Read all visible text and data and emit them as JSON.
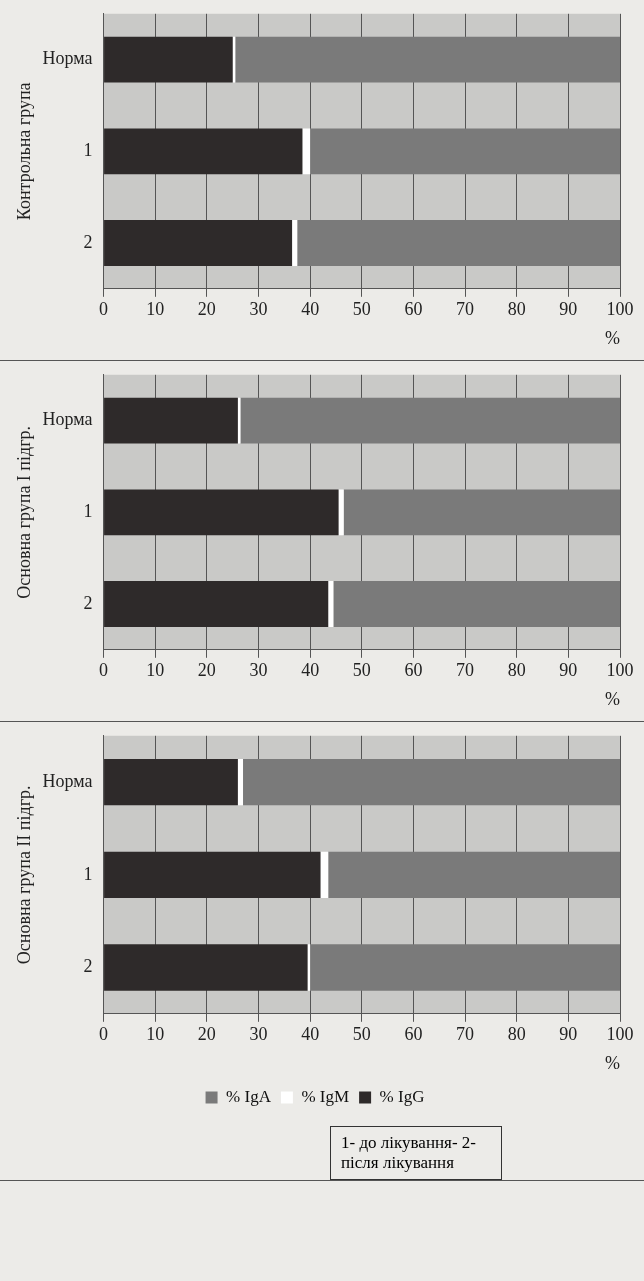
{
  "chart_data": [
    {
      "type": "bar",
      "orientation": "horizontal",
      "stacked": true,
      "ylabel": "Контрольна група",
      "xlabel": "%",
      "categories": [
        "Норма",
        "1",
        "2"
      ],
      "series": [
        {
          "color": "#2e2a2a",
          "values": [
            25,
            38.5,
            36.5
          ]
        },
        {
          "color": "#ffffff",
          "values": [
            0.5,
            1.5,
            1
          ]
        },
        {
          "color": "#7a7a7a",
          "values": [
            74.5,
            60,
            62.5
          ]
        }
      ],
      "xlim": [
        0,
        100
      ],
      "xticks": [
        0,
        10,
        20,
        30,
        40,
        50,
        60,
        70,
        80,
        90,
        100
      ],
      "grid": "x",
      "legend": false
    },
    {
      "type": "bar",
      "orientation": "horizontal",
      "stacked": true,
      "ylabel": "Основна група I підгр.",
      "xlabel": "%",
      "categories": [
        "Норма",
        "1",
        "2"
      ],
      "series": [
        {
          "color": "#2e2a2a",
          "values": [
            26,
            45.5,
            43.5
          ]
        },
        {
          "color": "#ffffff",
          "values": [
            0.5,
            1,
            1
          ]
        },
        {
          "color": "#7a7a7a",
          "values": [
            73.5,
            53.5,
            55.5
          ]
        }
      ],
      "xlim": [
        0,
        100
      ],
      "xticks": [
        0,
        10,
        20,
        30,
        40,
        50,
        60,
        70,
        80,
        90,
        100
      ],
      "grid": "x",
      "legend": false
    },
    {
      "type": "bar",
      "orientation": "horizontal",
      "stacked": true,
      "ylabel": "Основна група II підгр.",
      "xlabel": "%",
      "categories": [
        "Норма",
        "1",
        "2"
      ],
      "series": [
        {
          "name": "% IgG",
          "color": "#2e2a2a",
          "values": [
            26,
            42,
            39.5
          ]
        },
        {
          "name": "% IgM",
          "color": "#ffffff",
          "values": [
            1,
            1.5,
            0.5
          ]
        },
        {
          "name": "% IgA",
          "color": "#7a7a7a",
          "values": [
            73,
            56.5,
            60
          ]
        }
      ],
      "xlim": [
        0,
        100
      ],
      "xticks": [
        0,
        10,
        20,
        30,
        40,
        50,
        60,
        70,
        80,
        90,
        100
      ],
      "grid": "x",
      "legend": "bottom",
      "annotations": [
        "1- до лікування- 2- після лікування"
      ]
    }
  ]
}
